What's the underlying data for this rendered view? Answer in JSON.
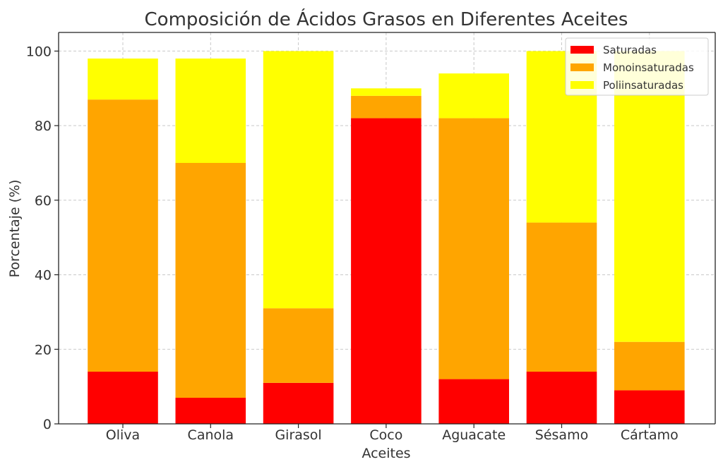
{
  "chart_data": {
    "type": "bar",
    "stacked": true,
    "title": "Composición de Ácidos Grasos en Diferentes Aceites",
    "xlabel": "Aceites",
    "ylabel": "Porcentaje (%)",
    "categories": [
      "Oliva",
      "Canola",
      "Girasol",
      "Coco",
      "Aguacate",
      "Sésamo",
      "Cártamo"
    ],
    "series": [
      {
        "name": "Saturadas",
        "color": "#ff0000",
        "values": [
          14,
          7,
          11,
          82,
          12,
          14,
          9
        ]
      },
      {
        "name": "Monoinsaturadas",
        "color": "#ffa500",
        "values": [
          73,
          63,
          20,
          6,
          70,
          40,
          13
        ]
      },
      {
        "name": "Poliinsaturadas",
        "color": "#ffff00",
        "values": [
          11,
          28,
          69,
          2,
          12,
          46,
          78
        ]
      }
    ],
    "ylim": [
      0,
      105
    ],
    "yticks": [
      0,
      20,
      40,
      60,
      80,
      100
    ],
    "grid": true,
    "legend_position": "top-right"
  }
}
